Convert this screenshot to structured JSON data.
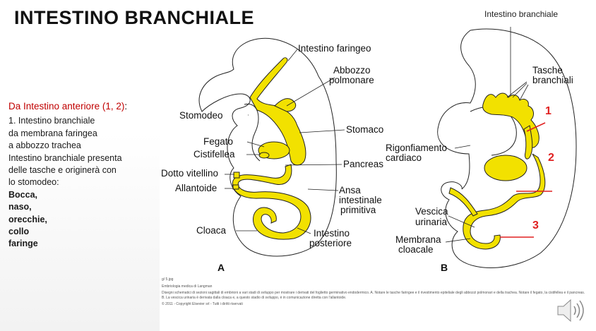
{
  "slide": {
    "title": "INTESTINO BRANCHIALE",
    "top_right_label": "Intestino branchiale"
  },
  "body": {
    "heading": "Da Intestino anteriore (1, 2)",
    "heading_colon": ":",
    "lines": [
      "1. Intestino branchiale",
      "da membrana faringea",
      "a abbozzo trachea",
      "Intestino branchiale presenta",
      "delle tasche e originerà con",
      "lo stomodeo:"
    ],
    "bold_lines": [
      "Bocca,",
      "naso,",
      "orecchie,",
      "collo",
      "faringe"
    ]
  },
  "figure_a": {
    "panel_letter": "A",
    "labels": {
      "intestino_faringeo": "Intestino faringeo",
      "abbozzo_line1": "Abbozzo",
      "abbozzo_line2": "polmonare",
      "stomodeo": "Stomodeo",
      "stomaco": "Stomaco",
      "fegato": "Fegato",
      "cistifellea": "Cistifellea",
      "pancreas": "Pancreas",
      "dotto_vitellino": "Dotto vitellino",
      "allantoide": "Allantoide",
      "ansa_line1": "Ansa",
      "ansa_line2": "intestinale",
      "ansa_line3": "primitiva",
      "cloaca": "Cloaca",
      "int_post_line1": "Intestino",
      "int_post_line2": "posteriore"
    }
  },
  "figure_b": {
    "panel_letter": "B",
    "labels": {
      "tasche_line1": "Tasche",
      "tasche_line2": "branchiali",
      "rigonfiamento_line1": "Rigonfiamento",
      "rigonfiamento_line2": "cardiaco",
      "vescica_line1": "Vescica",
      "vescica_line2": "urinaria",
      "membrana_line1": "Membrana",
      "membrana_line2": "cloacale"
    },
    "markers": [
      "1",
      "2",
      "3"
    ]
  },
  "caption": {
    "file": "g/ 5.jpg",
    "source": "Embriologia medica di Langman",
    "description": "Disegni schematici di sezioni sagittali di embrioni a vari stadi di sviluppo per mostrare i derivati del foglietto germinativo endodermico. A. Notare le tasche faringee e il rivestimento epiteliale degli abbozzi polmonari e della trachea. Notare il fegato, la cistifellea e il pancreas. B. La vescica urinaria è derivata dalla cloaca e, a questo stadio di sviluppo, è in comunicazione diretta con l'allantoide.",
    "copyright": "© 2011 - Copyright Elsevier srl - Tutti i diritti riservati"
  },
  "colors": {
    "endoderm": "#f2e100",
    "endoderm_stroke": "#222222",
    "marker": "#e02020",
    "heading": "#c00000"
  },
  "icons": [
    "speaker-icon"
  ]
}
